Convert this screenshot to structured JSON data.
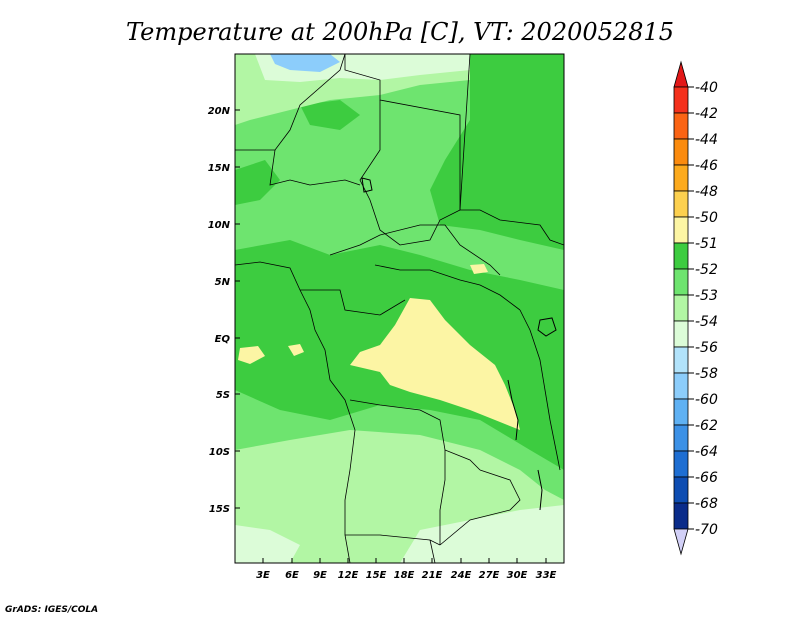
{
  "chart_data": {
    "type": "heatmap",
    "title": "Temperature at 200hPa [C], VT: 2020052815",
    "xlabel": "",
    "ylabel": "",
    "x_ticks": [
      "3E",
      "6E",
      "9E",
      "12E",
      "15E",
      "18E",
      "21E",
      "24E",
      "27E",
      "30E",
      "33E"
    ],
    "y_ticks": [
      "20N",
      "15N",
      "10N",
      "5N",
      "EQ",
      "5S",
      "10S",
      "15S"
    ],
    "xlim": [
      0,
      35
    ],
    "ylim": [
      -20,
      25
    ],
    "colorbar": {
      "levels": [
        "-40",
        "-42",
        "-44",
        "-46",
        "-48",
        "-50",
        "-51",
        "-52",
        "-53",
        "-54",
        "-56",
        "-58",
        "-60",
        "-62",
        "-64",
        "-66",
        "-68",
        "-70"
      ],
      "colors": [
        "#f4311c",
        "#fb6414",
        "#fb8b0e",
        "#fcaa1d",
        "#fcd04f",
        "#fcf5a4",
        "#3dcc40",
        "#6ee46f",
        "#b2f6a4",
        "#dcfcd8",
        "#b2e3fb",
        "#8ccdfb",
        "#5fb1f3",
        "#3c91e6",
        "#1e6ed2",
        "#0e4db2",
        "#0a2c8a",
        "#0a0c5e"
      ],
      "top_arrow_color": "#e21818",
      "bottom_arrow_color": "#d2d0f7"
    },
    "fill_colors": {
      "dominant": "#6ee46f",
      "warm_core": "#fcf5a4",
      "cool_south": "#b2f6a4",
      "coldest_north": "#8ccdfb"
    }
  },
  "credit": "GrADS: IGES/COLA"
}
